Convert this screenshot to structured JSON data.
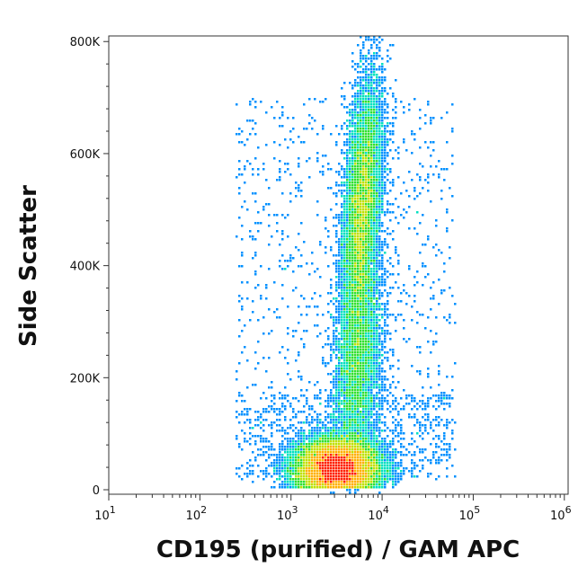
{
  "chart_data": {
    "type": "scatter",
    "title": "",
    "xlabel": "CD195 (purified) / GAM APC",
    "ylabel": "Side Scatter",
    "x_scale": "log",
    "xlim": [
      10,
      1100000
    ],
    "ylim": [
      -8000,
      810000
    ],
    "grid": false,
    "legend": "none",
    "x_ticks": [
      {
        "base": "10",
        "exp": "1",
        "value": 10
      },
      {
        "base": "10",
        "exp": "2",
        "value": 100
      },
      {
        "base": "10",
        "exp": "3",
        "value": 1000
      },
      {
        "base": "10",
        "exp": "4",
        "value": 10000
      },
      {
        "base": "10",
        "exp": "5",
        "value": 100000
      },
      {
        "base": "10",
        "exp": "6",
        "value": 1000000
      }
    ],
    "y_ticks": [
      {
        "label": "0",
        "value": 0
      },
      {
        "label": "200K",
        "value": 200000
      },
      {
        "label": "400K",
        "value": 400000
      },
      {
        "label": "600K",
        "value": 600000
      },
      {
        "label": "800K",
        "value": 800000
      }
    ],
    "density_colormap": [
      "#0000ff",
      "#0090ff",
      "#00e0c0",
      "#30e030",
      "#c0e000",
      "#ffb000",
      "#ff2000"
    ],
    "populations": [
      {
        "x_center": 3200,
        "y_center": 40000,
        "x_spread_decades": 0.22,
        "y_spread": 25000,
        "relative_density": "highest"
      },
      {
        "x_center": 6000,
        "y_center": 500000,
        "x_spread_decades": 0.1,
        "y_spread": 120000,
        "relative_density": "medium"
      },
      {
        "x_center": 5500,
        "y_center": 220000,
        "x_spread_decades": 0.12,
        "y_spread": 90000,
        "relative_density": "low"
      }
    ]
  }
}
